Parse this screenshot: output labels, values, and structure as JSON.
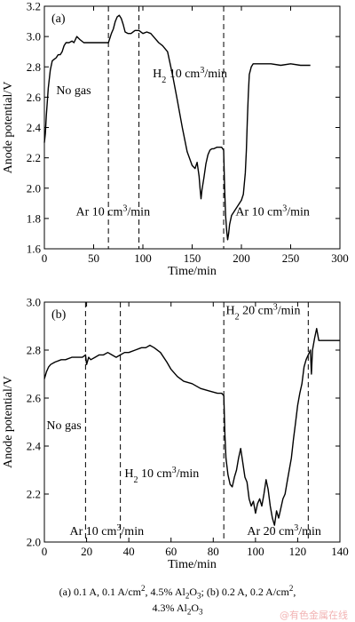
{
  "chart_data": [
    {
      "type": "line",
      "panel_label": "(a)",
      "xlabel": "Time/min",
      "ylabel": "Anode potential/V",
      "xlim": [
        0,
        300
      ],
      "ylim": [
        1.6,
        3.2
      ],
      "xticks": [
        0,
        50,
        100,
        150,
        200,
        250,
        300
      ],
      "yticks": [
        1.6,
        1.8,
        2.0,
        2.2,
        2.4,
        2.6,
        2.8,
        3.0,
        3.2
      ],
      "ytick_labels": [
        "1.6",
        "1.8",
        "2.0",
        "2.2",
        "2.4",
        "2.6",
        "2.8",
        "3.0",
        "3.2"
      ],
      "grid": false,
      "vlines": [
        65,
        96,
        182
      ],
      "annotations": [
        {
          "id": "no-gas",
          "text": "No gas",
          "x": 12,
          "y": 2.62
        },
        {
          "id": "h2",
          "text": "H2 10 cm3/min",
          "text_parts": [
            "H",
            "2",
            " 10 cm",
            "3",
            "/min"
          ],
          "x": 110,
          "y": 2.73
        },
        {
          "id": "ar1",
          "text": "Ar 10 cm3/min",
          "text_parts": [
            "Ar 10 cm",
            "3",
            "/min"
          ],
          "x": 32,
          "y": 1.82
        },
        {
          "id": "ar2",
          "text": "Ar 10 cm3/min",
          "text_parts": [
            "Ar 10 cm",
            "3",
            "/min"
          ],
          "x": 194,
          "y": 1.82
        }
      ],
      "series": [
        {
          "x": [
            0,
            1,
            2,
            4,
            6,
            8,
            10,
            12,
            14,
            16,
            18,
            20,
            22,
            25,
            28,
            30,
            33,
            36,
            40,
            45,
            50,
            55,
            60,
            65,
            66,
            68,
            70,
            72,
            74,
            76,
            78,
            80,
            82,
            85,
            88,
            92,
            96,
            100,
            104,
            108,
            112,
            116,
            120,
            125,
            130,
            135,
            140,
            145,
            150,
            153,
            155,
            157,
            158,
            159,
            160,
            162,
            164,
            166,
            168,
            170,
            172,
            175,
            178,
            180,
            182,
            183,
            184,
            185,
            186,
            187,
            188,
            190,
            192,
            195,
            198,
            200,
            202,
            204,
            205,
            206,
            207,
            208,
            210,
            212,
            215,
            220,
            230,
            240,
            250,
            260,
            270
          ],
          "y": [
            2.3,
            2.36,
            2.48,
            2.66,
            2.78,
            2.84,
            2.85,
            2.86,
            2.88,
            2.88,
            2.9,
            2.94,
            2.96,
            2.96,
            2.97,
            2.96,
            3.0,
            2.98,
            2.96,
            2.96,
            2.96,
            2.96,
            2.96,
            2.96,
            2.98,
            3.02,
            3.05,
            3.1,
            3.13,
            3.14,
            3.12,
            3.08,
            3.03,
            3.02,
            3.02,
            3.04,
            3.04,
            3.02,
            3.03,
            3.02,
            2.99,
            2.96,
            2.94,
            2.9,
            2.75,
            2.58,
            2.4,
            2.24,
            2.15,
            2.13,
            2.17,
            2.08,
            2.0,
            1.93,
            1.99,
            2.07,
            2.16,
            2.22,
            2.25,
            2.26,
            2.26,
            2.27,
            2.27,
            2.27,
            2.25,
            2.0,
            1.82,
            1.72,
            1.66,
            1.7,
            1.76,
            1.82,
            1.84,
            1.87,
            1.9,
            1.92,
            1.96,
            2.1,
            2.25,
            2.45,
            2.62,
            2.75,
            2.8,
            2.82,
            2.82,
            2.82,
            2.82,
            2.81,
            2.82,
            2.81,
            2.81
          ]
        }
      ]
    },
    {
      "type": "line",
      "panel_label": "(b)",
      "xlabel": "Time/min",
      "ylabel": "Anode potential/V",
      "xlim": [
        0,
        140
      ],
      "ylim": [
        2.0,
        3.0
      ],
      "xticks": [
        0,
        20,
        40,
        60,
        80,
        100,
        120,
        140
      ],
      "yticks": [
        2.0,
        2.2,
        2.4,
        2.6,
        2.8,
        3.0
      ],
      "ytick_labels": [
        "2.0",
        "2.2",
        "2.4",
        "2.6",
        "2.8",
        "3.0"
      ],
      "grid": false,
      "vlines": [
        19.5,
        36,
        85,
        125
      ],
      "annotations": [
        {
          "id": "no-gas",
          "text": "No gas",
          "x": 1,
          "y": 2.47
        },
        {
          "id": "h2-10",
          "text": "H2 10 cm3/min",
          "text_parts": [
            "H",
            "2",
            " 10 cm",
            "3",
            "/min"
          ],
          "x": 38,
          "y": 2.27
        },
        {
          "id": "h2-20",
          "text": "H2 20 cm3/min",
          "text_parts": [
            "H",
            "2",
            " 20 cm",
            "3",
            "/min"
          ],
          "x": 86,
          "y": 2.95
        },
        {
          "id": "ar-10",
          "text": "Ar 10 cm3/min",
          "text_parts": [
            "Ar 10 cm",
            "3",
            "/min"
          ],
          "x": 12,
          "y": 2.03
        },
        {
          "id": "ar-20",
          "text": "Ar 20 cm3/min",
          "text_parts": [
            "Ar 20 cm",
            "3",
            "/min"
          ],
          "x": 96,
          "y": 2.03
        }
      ],
      "series": [
        {
          "x": [
            0,
            1,
            2,
            3,
            5,
            8,
            10,
            13,
            15,
            18,
            19.5,
            20,
            21,
            22,
            24,
            26,
            28,
            30,
            32,
            34,
            36,
            38,
            40,
            43,
            46,
            48,
            50,
            52,
            55,
            58,
            60,
            63,
            66,
            70,
            74,
            78,
            82,
            84,
            85,
            85.5,
            86,
            87,
            88,
            89,
            90,
            91,
            92,
            93,
            94,
            95,
            96,
            97,
            98,
            99,
            100,
            101,
            102,
            103,
            104,
            105,
            106,
            107,
            108,
            109,
            110,
            111,
            112,
            113,
            114,
            115,
            116,
            117,
            118,
            119,
            120,
            121,
            122,
            123,
            124,
            125,
            126,
            126.5,
            127,
            128,
            129,
            130,
            132,
            135,
            138,
            140
          ],
          "y": [
            2.68,
            2.71,
            2.73,
            2.74,
            2.75,
            2.76,
            2.76,
            2.77,
            2.77,
            2.77,
            2.78,
            2.74,
            2.77,
            2.76,
            2.77,
            2.78,
            2.78,
            2.79,
            2.78,
            2.77,
            2.78,
            2.79,
            2.79,
            2.8,
            2.81,
            2.81,
            2.82,
            2.81,
            2.79,
            2.75,
            2.72,
            2.69,
            2.67,
            2.66,
            2.64,
            2.63,
            2.62,
            2.62,
            2.61,
            2.45,
            2.35,
            2.28,
            2.24,
            2.23,
            2.27,
            2.3,
            2.35,
            2.39,
            2.33,
            2.27,
            2.25,
            2.18,
            2.15,
            2.17,
            2.12,
            2.16,
            2.18,
            2.15,
            2.2,
            2.26,
            2.22,
            2.15,
            2.1,
            2.07,
            2.13,
            2.1,
            2.14,
            2.18,
            2.2,
            2.25,
            2.3,
            2.35,
            2.43,
            2.5,
            2.57,
            2.62,
            2.66,
            2.73,
            2.76,
            2.78,
            2.8,
            2.7,
            2.8,
            2.85,
            2.89,
            2.84,
            2.84,
            2.84,
            2.84,
            2.84
          ]
        }
      ]
    }
  ],
  "caption": {
    "line1_parts": [
      {
        "t": "(a) 0.1 A, 0.1 A/cm"
      },
      {
        "t": "2",
        "s": "sup"
      },
      {
        "t": ", 4.5% Al"
      },
      {
        "t": "2",
        "s": "sub"
      },
      {
        "t": "O"
      },
      {
        "t": "3",
        "s": "sub"
      },
      {
        "t": "; (b) 0.2 A, 0.2 A/cm"
      },
      {
        "t": "2",
        "s": "sup"
      },
      {
        "t": ","
      }
    ],
    "line2_parts": [
      {
        "t": "4.3% Al"
      },
      {
        "t": "2",
        "s": "sub"
      },
      {
        "t": "O"
      },
      {
        "t": "3",
        "s": "sub"
      }
    ]
  },
  "watermark": "@有色金属在线"
}
